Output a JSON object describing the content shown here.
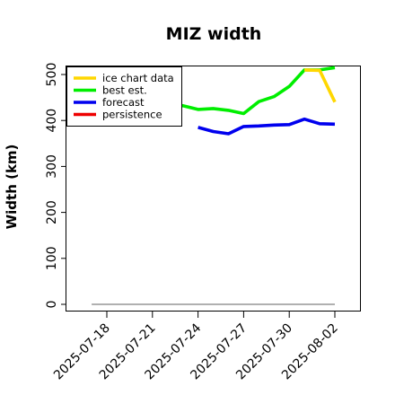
{
  "chart_data": {
    "type": "line",
    "title": "MIZ width",
    "xlabel": "",
    "ylabel": "Width (km)",
    "xlim": [
      "2025-07-15",
      "2025-08-02"
    ],
    "ylim": [
      0,
      520
    ],
    "y_ticks": [
      0,
      100,
      200,
      300,
      400,
      500
    ],
    "x_ticks": [
      "2025-07-18",
      "2025-07-21",
      "2025-07-24",
      "2025-07-27",
      "2025-07-30",
      "2025-08-02"
    ],
    "highlighted_x_tick": "2025-07-24",
    "highlight_color": "#228B22",
    "grid": false,
    "legend_position": "top-left",
    "legend": [
      {
        "label": "ice chart data",
        "color": "#FFD700"
      },
      {
        "label": "best est.",
        "color": "#00EE00"
      },
      {
        "label": "forecast",
        "color": "#0000EE"
      },
      {
        "label": "persistence",
        "color": "#EE0000"
      }
    ],
    "series": [
      {
        "name": "ice chart data",
        "color": "#FFD700",
        "points": [
          {
            "x": "2025-07-31",
            "y": 510
          },
          {
            "x": "2025-08-01",
            "y": 509
          },
          {
            "x": "2025-08-02",
            "y": 440
          }
        ]
      },
      {
        "name": "best est.",
        "color": "#00EE00",
        "points": [
          {
            "x": "2025-07-22",
            "y": 438
          },
          {
            "x": "2025-07-23",
            "y": 432
          },
          {
            "x": "2025-07-24",
            "y": 424
          },
          {
            "x": "2025-07-25",
            "y": 426
          },
          {
            "x": "2025-07-26",
            "y": 422
          },
          {
            "x": "2025-07-27",
            "y": 415
          },
          {
            "x": "2025-07-28",
            "y": 441
          },
          {
            "x": "2025-07-29",
            "y": 452
          },
          {
            "x": "2025-07-30",
            "y": 474
          },
          {
            "x": "2025-07-31",
            "y": 510
          },
          {
            "x": "2025-08-01",
            "y": 510
          },
          {
            "x": "2025-08-02",
            "y": 515
          }
        ]
      },
      {
        "name": "forecast",
        "color": "#0000EE",
        "points": [
          {
            "x": "2025-07-24",
            "y": 385
          },
          {
            "x": "2025-07-25",
            "y": 376
          },
          {
            "x": "2025-07-26",
            "y": 371
          },
          {
            "x": "2025-07-27",
            "y": 387
          },
          {
            "x": "2025-07-28",
            "y": 388
          },
          {
            "x": "2025-07-29",
            "y": 390
          },
          {
            "x": "2025-07-30",
            "y": 391
          },
          {
            "x": "2025-07-31",
            "y": 403
          },
          {
            "x": "2025-08-01",
            "y": 393
          },
          {
            "x": "2025-08-02",
            "y": 392
          }
        ]
      },
      {
        "name": "persistence",
        "color": "#EE0000",
        "points": []
      },
      {
        "name": "",
        "color": "#808080",
        "points": [
          {
            "x": "2025-07-17",
            "y": 0
          },
          {
            "x": "2025-08-02",
            "y": 0
          }
        ]
      }
    ]
  }
}
